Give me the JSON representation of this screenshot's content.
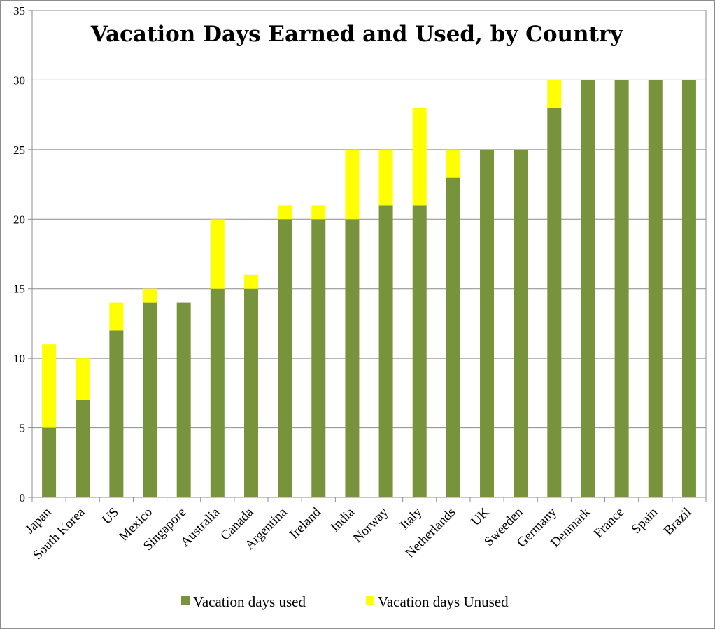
{
  "chart_data": {
    "type": "bar",
    "stacked": true,
    "title": "Vacation Days Earned and Used, by Country",
    "xlabel": "",
    "ylabel": "",
    "ylim": [
      0,
      35
    ],
    "yticks": [
      0,
      5,
      10,
      15,
      20,
      25,
      30,
      35
    ],
    "grid": true,
    "legend": "bottom",
    "categories": [
      "Japan",
      "South Korea",
      "US",
      "Mexico",
      "Singapore",
      "Australia",
      "Canada",
      "Argentina",
      "Ireland",
      "India",
      "Norway",
      "Italy",
      "Netherlands",
      "UK",
      "Sweeden",
      "Germany",
      "Denmark",
      "France",
      "Spain",
      "Brazil"
    ],
    "series": [
      {
        "name": "Vacation days used",
        "color": "#77933c",
        "values": [
          5,
          7,
          12,
          14,
          14,
          15,
          15,
          20,
          20,
          20,
          21,
          21,
          23,
          25,
          25,
          28,
          30,
          30,
          30,
          30
        ]
      },
      {
        "name": "Vacation days Unused",
        "color": "#ffff00",
        "values": [
          6,
          3,
          2,
          1,
          0,
          5,
          1,
          1,
          1,
          5,
          4,
          7,
          2,
          0,
          0,
          2,
          0,
          0,
          0,
          0
        ]
      }
    ]
  }
}
